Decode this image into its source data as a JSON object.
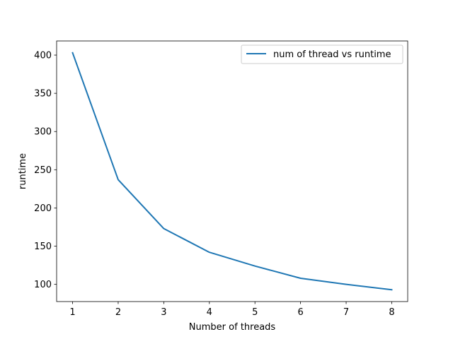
{
  "chart_data": {
    "type": "line",
    "title": "",
    "xlabel": "Number of threads",
    "ylabel": "runtime",
    "x": [
      1,
      2,
      3,
      4,
      5,
      6,
      7,
      8
    ],
    "series": [
      {
        "name": "num of thread vs runtime",
        "color": "#1f77b4",
        "values": [
          403,
          237,
          173,
          142,
          124,
          108,
          100,
          93
        ]
      }
    ],
    "xlim": [
      0.65,
      8.35
    ],
    "ylim": [
      77.5,
      418.5
    ],
    "xticks": [
      1,
      2,
      3,
      4,
      5,
      6,
      7,
      8
    ],
    "xtick_labels": [
      "1",
      "2",
      "3",
      "4",
      "5",
      "6",
      "7",
      "8"
    ],
    "yticks": [
      100,
      150,
      200,
      250,
      300,
      350,
      400
    ],
    "ytick_labels": [
      "100",
      "150",
      "200",
      "250",
      "300",
      "350",
      "400"
    ],
    "grid": false,
    "legend_position": "top-right"
  }
}
